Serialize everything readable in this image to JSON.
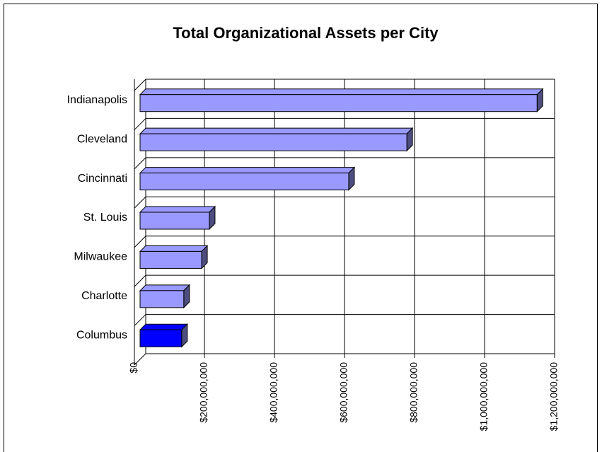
{
  "chart_data": {
    "type": "bar",
    "orientation": "horizontal",
    "title": "Total Organizational Assets per City",
    "categories": [
      "Indianapolis",
      "Cleveland",
      "Cincinnati",
      "St. Louis",
      "Milwaukee",
      "Charlotte",
      "Columbus"
    ],
    "values": [
      1150000000,
      778000000,
      612000000,
      214000000,
      192000000,
      141000000,
      135000000
    ],
    "colors": [
      "#9999ff",
      "#9999ff",
      "#9999ff",
      "#9999ff",
      "#9999ff",
      "#9999ff",
      "#0000ff"
    ],
    "xlim": [
      0,
      1200000000
    ],
    "xticks": [
      {
        "value": 0,
        "label": "$0"
      },
      {
        "value": 200000000,
        "label": "$200,000,000"
      },
      {
        "value": 400000000,
        "label": "$400,000,000"
      },
      {
        "value": 600000000,
        "label": "$600,000,000"
      },
      {
        "value": 800000000,
        "label": "$800,000,000"
      },
      {
        "value": 1000000000,
        "label": "$1,000,000,000"
      },
      {
        "value": 1200000000,
        "label": "$1,200,000,000"
      }
    ],
    "grid": true
  }
}
